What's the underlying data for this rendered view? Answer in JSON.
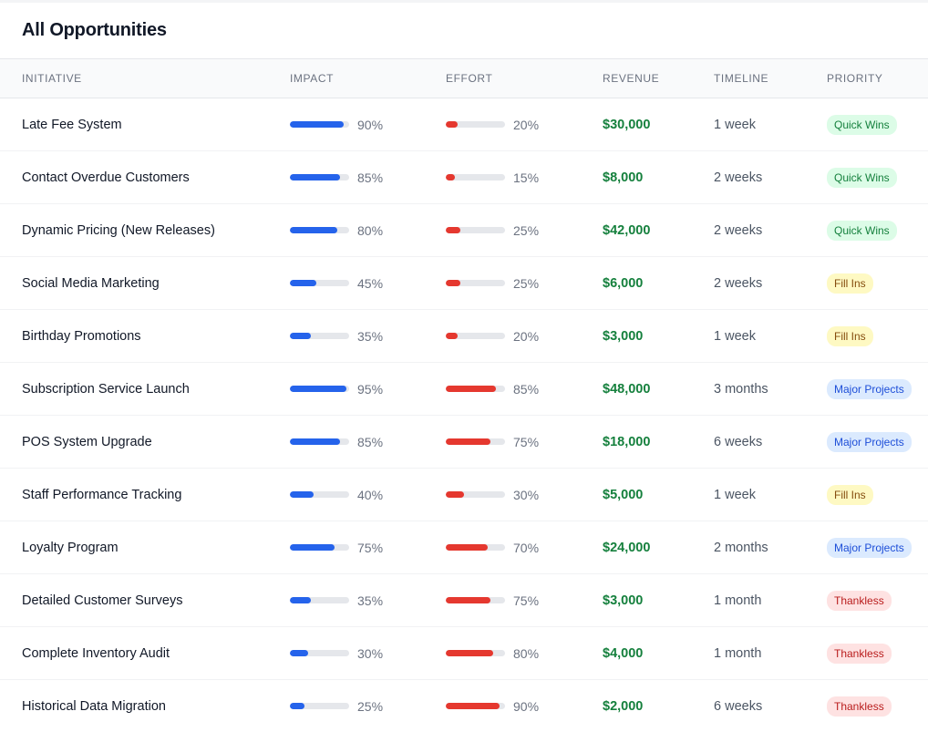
{
  "page": {
    "title": "All Opportunities"
  },
  "columns": {
    "initiative": "INITIATIVE",
    "impact": "IMPACT",
    "effort": "EFFORT",
    "revenue": "REVENUE",
    "timeline": "TIMELINE",
    "priority": "PRIORITY"
  },
  "colors": {
    "impact_bar": "#2563eb",
    "effort_bar": "#e5382f",
    "revenue_text": "#15803d",
    "quick_wins": {
      "bg": "#dcfce7",
      "fg": "#15803d"
    },
    "fill_ins": {
      "bg": "#fef9c3",
      "fg": "#854d0e"
    },
    "major_projects": {
      "bg": "#dbeafe",
      "fg": "#1d4ed8"
    },
    "thankless": {
      "bg": "#fee2e2",
      "fg": "#b91c1c"
    }
  },
  "rows": [
    {
      "name": "Late Fee System",
      "impact": 90,
      "impact_label": "90%",
      "effort": 20,
      "effort_label": "20%",
      "revenue": "$30,000",
      "timeline": "1 week",
      "priority": "Quick Wins",
      "priority_key": "quick_wins"
    },
    {
      "name": "Contact Overdue Customers",
      "impact": 85,
      "impact_label": "85%",
      "effort": 15,
      "effort_label": "15%",
      "revenue": "$8,000",
      "timeline": "2 weeks",
      "priority": "Quick Wins",
      "priority_key": "quick_wins"
    },
    {
      "name": "Dynamic Pricing (New Releases)",
      "impact": 80,
      "impact_label": "80%",
      "effort": 25,
      "effort_label": "25%",
      "revenue": "$42,000",
      "timeline": "2 weeks",
      "priority": "Quick Wins",
      "priority_key": "quick_wins"
    },
    {
      "name": "Social Media Marketing",
      "impact": 45,
      "impact_label": "45%",
      "effort": 25,
      "effort_label": "25%",
      "revenue": "$6,000",
      "timeline": "2 weeks",
      "priority": "Fill Ins",
      "priority_key": "fill_ins"
    },
    {
      "name": "Birthday Promotions",
      "impact": 35,
      "impact_label": "35%",
      "effort": 20,
      "effort_label": "20%",
      "revenue": "$3,000",
      "timeline": "1 week",
      "priority": "Fill Ins",
      "priority_key": "fill_ins"
    },
    {
      "name": "Subscription Service Launch",
      "impact": 95,
      "impact_label": "95%",
      "effort": 85,
      "effort_label": "85%",
      "revenue": "$48,000",
      "timeline": "3 months",
      "priority": "Major Projects",
      "priority_key": "major_projects"
    },
    {
      "name": "POS System Upgrade",
      "impact": 85,
      "impact_label": "85%",
      "effort": 75,
      "effort_label": "75%",
      "revenue": "$18,000",
      "timeline": "6 weeks",
      "priority": "Major Projects",
      "priority_key": "major_projects"
    },
    {
      "name": "Staff Performance Tracking",
      "impact": 40,
      "impact_label": "40%",
      "effort": 30,
      "effort_label": "30%",
      "revenue": "$5,000",
      "timeline": "1 week",
      "priority": "Fill Ins",
      "priority_key": "fill_ins"
    },
    {
      "name": "Loyalty Program",
      "impact": 75,
      "impact_label": "75%",
      "effort": 70,
      "effort_label": "70%",
      "revenue": "$24,000",
      "timeline": "2 months",
      "priority": "Major Projects",
      "priority_key": "major_projects"
    },
    {
      "name": "Detailed Customer Surveys",
      "impact": 35,
      "impact_label": "35%",
      "effort": 75,
      "effort_label": "75%",
      "revenue": "$3,000",
      "timeline": "1 month",
      "priority": "Thankless",
      "priority_key": "thankless"
    },
    {
      "name": "Complete Inventory Audit",
      "impact": 30,
      "impact_label": "30%",
      "effort": 80,
      "effort_label": "80%",
      "revenue": "$4,000",
      "timeline": "1 month",
      "priority": "Thankless",
      "priority_key": "thankless"
    },
    {
      "name": "Historical Data Migration",
      "impact": 25,
      "impact_label": "25%",
      "effort": 90,
      "effort_label": "90%",
      "revenue": "$2,000",
      "timeline": "6 weeks",
      "priority": "Thankless",
      "priority_key": "thankless"
    }
  ]
}
